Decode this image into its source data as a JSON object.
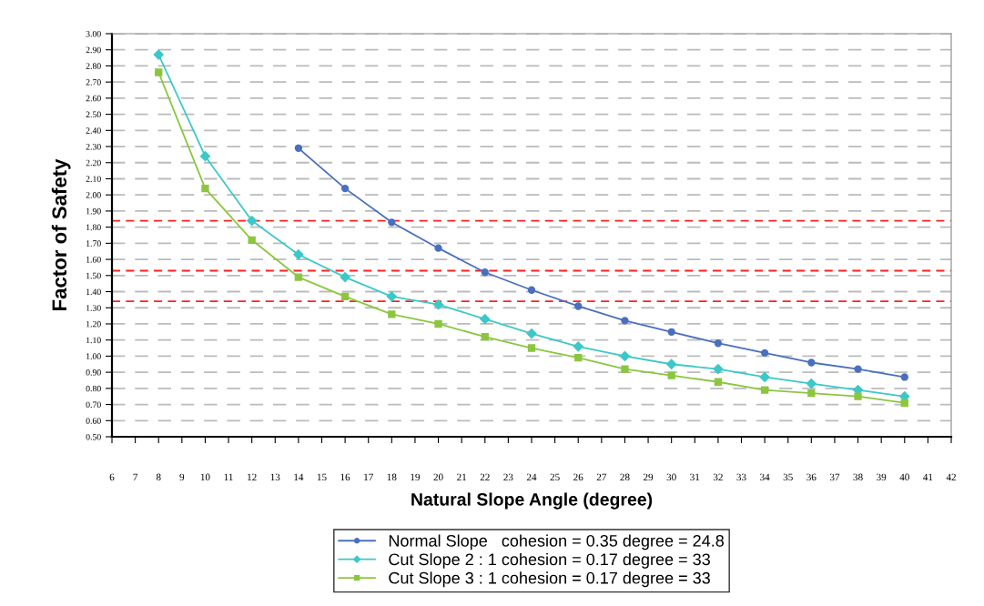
{
  "chart_data": {
    "type": "line",
    "xlabel": "Natural Slope Angle (degree)",
    "ylabel": "Factor of Safety",
    "xlim": [
      6,
      42
    ],
    "xticks": [
      6,
      7,
      8,
      9,
      10,
      11,
      12,
      13,
      14,
      15,
      16,
      17,
      18,
      19,
      20,
      21,
      22,
      23,
      24,
      25,
      26,
      27,
      28,
      29,
      30,
      31,
      32,
      33,
      34,
      35,
      36,
      37,
      38,
      39,
      40,
      41,
      42
    ],
    "ylim": [
      0.5,
      3.0
    ],
    "yticks": [
      {
        "value": 0.5,
        "label": "0.50"
      },
      {
        "value": 0.6,
        "label": "0.60"
      },
      {
        "value": 0.7,
        "label": "0.70"
      },
      {
        "value": 0.8,
        "label": "0.80"
      },
      {
        "value": 0.9,
        "label": "0.90"
      },
      {
        "value": 1.0,
        "label": "1.00"
      },
      {
        "value": 1.1,
        "label": "1.10"
      },
      {
        "value": 1.2,
        "label": "1.20"
      },
      {
        "value": 1.3,
        "label": "1.30"
      },
      {
        "value": 1.4,
        "label": "1.40"
      },
      {
        "value": 1.5,
        "label": "1.50"
      },
      {
        "value": 1.6,
        "label": "1.60"
      },
      {
        "value": 1.7,
        "label": "1.70"
      },
      {
        "value": 1.8,
        "label": "1.80"
      },
      {
        "value": 1.9,
        "label": "1.90"
      },
      {
        "value": 2.0,
        "label": "2.00"
      },
      {
        "value": 2.1,
        "label": "2.10"
      },
      {
        "value": 2.2,
        "label": "2.20"
      },
      {
        "value": 2.3,
        "label": "2.30"
      },
      {
        "value": 2.4,
        "label": "2.40"
      },
      {
        "value": 2.5,
        "label": "2.50"
      },
      {
        "value": 2.6,
        "label": "2.60"
      },
      {
        "value": 2.7,
        "label": "2.70"
      },
      {
        "value": 2.8,
        "label": "2.80"
      },
      {
        "value": 2.9,
        "label": "2.90"
      },
      {
        "value": 3.0,
        "label": "3.00"
      }
    ],
    "grid": "y",
    "legend": "bottom",
    "line_style": "solid",
    "series": [
      {
        "name": "Normal Slope   cohesion = 0.35 degree = 24.8",
        "color": "#4a6fbf",
        "marker": "circle",
        "x": [
          14,
          16,
          18,
          20,
          22,
          24,
          26,
          28,
          30,
          32,
          34,
          36,
          38,
          40
        ],
        "values": [
          2.29,
          2.04,
          1.83,
          1.67,
          1.52,
          1.41,
          1.31,
          1.22,
          1.15,
          1.08,
          1.02,
          0.96,
          0.92,
          0.87
        ]
      },
      {
        "name": "Cut Slope 2 : 1 cohesion = 0.17 degree = 33",
        "color": "#3cc8c8",
        "marker": "diamond",
        "x": [
          8,
          10,
          12,
          14,
          16,
          18,
          20,
          22,
          24,
          26,
          28,
          30,
          32,
          34,
          36,
          38,
          40
        ],
        "values": [
          2.87,
          2.24,
          1.84,
          1.63,
          1.49,
          1.37,
          1.32,
          1.23,
          1.14,
          1.06,
          1.0,
          0.95,
          0.92,
          0.87,
          0.83,
          0.79,
          0.75
        ]
      },
      {
        "name": "Cut Slope 3 : 1 cohesion = 0.17 degree = 33",
        "color": "#8cc63f",
        "marker": "square",
        "x": [
          8,
          10,
          12,
          14,
          16,
          18,
          20,
          22,
          24,
          26,
          28,
          30,
          32,
          34,
          36,
          38,
          40
        ],
        "values": [
          2.76,
          2.04,
          1.72,
          1.49,
          1.37,
          1.26,
          1.2,
          1.12,
          1.05,
          0.99,
          0.92,
          0.88,
          0.84,
          0.79,
          0.77,
          0.75,
          0.71
        ]
      }
    ],
    "ref_lines": [
      {
        "axis": "y",
        "value": 1.84,
        "color": "#ff2020",
        "line_style": "dashed"
      },
      {
        "axis": "y",
        "value": 1.53,
        "color": "#ff2020",
        "line_style": "dashed"
      },
      {
        "axis": "y",
        "value": 1.34,
        "color": "#ff2020",
        "line_style": "dashed"
      }
    ]
  }
}
